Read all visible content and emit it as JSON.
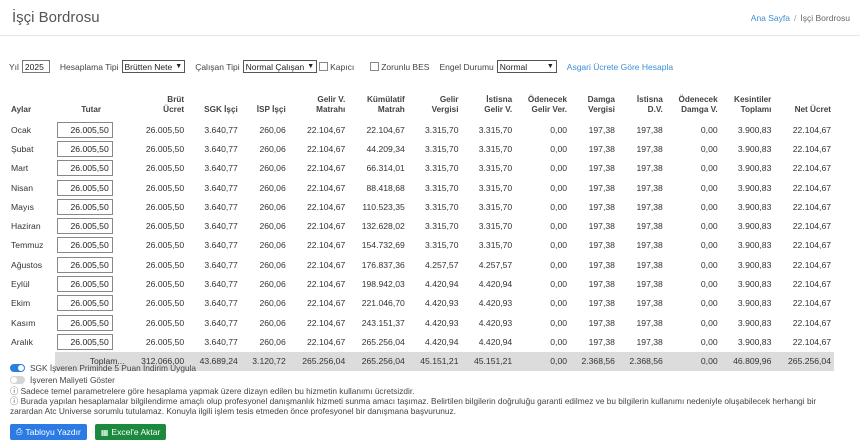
{
  "header": {
    "title": "İşçi Bordrosu",
    "breadcrumb": {
      "home": "Ana Sayfa",
      "separator": "/",
      "current": "İşçi Bordrosu"
    }
  },
  "controls": {
    "year_label": "Yıl",
    "year_value": "2025",
    "calc_type_label": "Hesaplama Tipi",
    "calc_type_value": "Brütten Nete",
    "employee_type_label": "Çalışan Tipi",
    "employee_type_value": "Normal Çalışan",
    "kapici_label": "Kapıcı",
    "bes_label": "Zorunlu BES",
    "disability_label": "Engel Durumu",
    "disability_value": "Normal",
    "min_wage_link": "Asgari Ücrete Göre Hesapla"
  },
  "table": {
    "headers": {
      "aylar": "Aylar",
      "tutar": "Tutar",
      "brut": [
        "Brüt",
        "Ücret"
      ],
      "sgk": "SGK İşçi",
      "isp": "İSP İşçi",
      "gv_matrah": [
        "Gelir V.",
        "Matrahı"
      ],
      "kum_matrah": [
        "Kümülatif",
        "Matrah"
      ],
      "gelir_vergisi": [
        "Gelir",
        "Vergisi"
      ],
      "istisna_gv": [
        "İstisna",
        "Gelir V."
      ],
      "odenecek_gv": [
        "Ödenecek",
        "Gelir Ver."
      ],
      "damga": [
        "Damga",
        "Vergisi"
      ],
      "istisna_dv": [
        "İstisna",
        "D.V."
      ],
      "odenecek_dv": [
        "Ödenecek",
        "Damga V."
      ],
      "kesinti": [
        "Kesintiler",
        "Toplamı"
      ],
      "net": "Net Ücret"
    },
    "rows": [
      {
        "month": "Ocak",
        "tutar": "26.005,50",
        "brut": "26.005,50",
        "sgk": "3.640,77",
        "isp": "260,06",
        "gvm": "22.104,67",
        "kum": "22.104,67",
        "gv": "3.315,70",
        "igv": "3.315,70",
        "ogv": "0,00",
        "dv": "197,38",
        "idv": "197,38",
        "odv": "0,00",
        "kes": "3.900,83",
        "net": "22.104,67"
      },
      {
        "month": "Şubat",
        "tutar": "26.005,50",
        "brut": "26.005,50",
        "sgk": "3.640,77",
        "isp": "260,06",
        "gvm": "22.104,67",
        "kum": "44.209,34",
        "gv": "3.315,70",
        "igv": "3.315,70",
        "ogv": "0,00",
        "dv": "197,38",
        "idv": "197,38",
        "odv": "0,00",
        "kes": "3.900,83",
        "net": "22.104,67"
      },
      {
        "month": "Mart",
        "tutar": "26.005,50",
        "brut": "26.005,50",
        "sgk": "3.640,77",
        "isp": "260,06",
        "gvm": "22.104,67",
        "kum": "66.314,01",
        "gv": "3.315,70",
        "igv": "3.315,70",
        "ogv": "0,00",
        "dv": "197,38",
        "idv": "197,38",
        "odv": "0,00",
        "kes": "3.900,83",
        "net": "22.104,67"
      },
      {
        "month": "Nisan",
        "tutar": "26.005,50",
        "brut": "26.005,50",
        "sgk": "3.640,77",
        "isp": "260,06",
        "gvm": "22.104,67",
        "kum": "88.418,68",
        "gv": "3.315,70",
        "igv": "3.315,70",
        "ogv": "0,00",
        "dv": "197,38",
        "idv": "197,38",
        "odv": "0,00",
        "kes": "3.900,83",
        "net": "22.104,67"
      },
      {
        "month": "Mayıs",
        "tutar": "26.005,50",
        "brut": "26.005,50",
        "sgk": "3.640,77",
        "isp": "260,06",
        "gvm": "22.104,67",
        "kum": "110.523,35",
        "gv": "3.315,70",
        "igv": "3.315,70",
        "ogv": "0,00",
        "dv": "197,38",
        "idv": "197,38",
        "odv": "0,00",
        "kes": "3.900,83",
        "net": "22.104,67"
      },
      {
        "month": "Haziran",
        "tutar": "26.005,50",
        "brut": "26.005,50",
        "sgk": "3.640,77",
        "isp": "260,06",
        "gvm": "22.104,67",
        "kum": "132.628,02",
        "gv": "3.315,70",
        "igv": "3.315,70",
        "ogv": "0,00",
        "dv": "197,38",
        "idv": "197,38",
        "odv": "0,00",
        "kes": "3.900,83",
        "net": "22.104,67"
      },
      {
        "month": "Temmuz",
        "tutar": "26.005,50",
        "brut": "26.005,50",
        "sgk": "3.640,77",
        "isp": "260,06",
        "gvm": "22.104,67",
        "kum": "154.732,69",
        "gv": "3.315,70",
        "igv": "3.315,70",
        "ogv": "0,00",
        "dv": "197,38",
        "idv": "197,38",
        "odv": "0,00",
        "kes": "3.900,83",
        "net": "22.104,67"
      },
      {
        "month": "Ağustos",
        "tutar": "26.005,50",
        "brut": "26.005,50",
        "sgk": "3.640,77",
        "isp": "260,06",
        "gvm": "22.104,67",
        "kum": "176.837,36",
        "gv": "4.257,57",
        "igv": "4.257,57",
        "ogv": "0,00",
        "dv": "197,38",
        "idv": "197,38",
        "odv": "0,00",
        "kes": "3.900,83",
        "net": "22.104,67"
      },
      {
        "month": "Eylül",
        "tutar": "26.005,50",
        "brut": "26.005,50",
        "sgk": "3.640,77",
        "isp": "260,06",
        "gvm": "22.104,67",
        "kum": "198.942,03",
        "gv": "4.420,94",
        "igv": "4.420,94",
        "ogv": "0,00",
        "dv": "197,38",
        "idv": "197,38",
        "odv": "0,00",
        "kes": "3.900,83",
        "net": "22.104,67"
      },
      {
        "month": "Ekim",
        "tutar": "26.005,50",
        "brut": "26.005,50",
        "sgk": "3.640,77",
        "isp": "260,06",
        "gvm": "22.104,67",
        "kum": "221.046,70",
        "gv": "4.420,93",
        "igv": "4.420,93",
        "ogv": "0,00",
        "dv": "197,38",
        "idv": "197,38",
        "odv": "0,00",
        "kes": "3.900,83",
        "net": "22.104,67"
      },
      {
        "month": "Kasım",
        "tutar": "26.005,50",
        "brut": "26.005,50",
        "sgk": "3.640,77",
        "isp": "260,06",
        "gvm": "22.104,67",
        "kum": "243.151,37",
        "gv": "4.420,93",
        "igv": "4.420,93",
        "ogv": "0,00",
        "dv": "197,38",
        "idv": "197,38",
        "odv": "0,00",
        "kes": "3.900,83",
        "net": "22.104,67"
      },
      {
        "month": "Aralık",
        "tutar": "26.005,50",
        "brut": "26.005,50",
        "sgk": "3.640,77",
        "isp": "260,06",
        "gvm": "22.104,67",
        "kum": "265.256,04",
        "gv": "4.420,94",
        "igv": "4.420,94",
        "ogv": "0,00",
        "dv": "197,38",
        "idv": "197,38",
        "odv": "0,00",
        "kes": "3.900,83",
        "net": "22.104,67"
      }
    ],
    "total": {
      "label": "Toplam...",
      "brut": "312.066,00",
      "sgk": "43.689,24",
      "isp": "3.120,72",
      "gvm": "265.256,04",
      "kum": "265.256,04",
      "gv": "45.151,21",
      "igv": "45.151,21",
      "ogv": "0,00",
      "dv": "2.368,56",
      "idv": "2.368,56",
      "odv": "0,00",
      "kes": "46.809,96",
      "net": "265.256,04"
    }
  },
  "footer": {
    "toggle_sgk": "SGK İşveren Priminde 5 Puan İndirim Uygula",
    "toggle_employer": "İşveren Maliyeti Göster",
    "note1": "Sadece temel parametrelere göre hesaplama yapmak üzere dizayn edilen bu hizmetin kullanımı ücretsizdir.",
    "note2": "Burada yapılan hesaplamalar bilgilendirme amaçlı olup profesyonel danışmanlık hizmeti sunma amacı taşımaz. Belirtilen bilgilerin doğruluğu garanti edilmez ve bu bilgilerin kullanımı nedeniyle oluşabilecek herhangi bir zarardan Atc Universe sorumlu tutulamaz. Konuyla ilgili işlem tesis etmeden önce profesyonel bir danışmana başvurunuz."
  },
  "buttons": {
    "print": "Tabloyu Yazdır",
    "excel": "Excel'e Aktar"
  }
}
